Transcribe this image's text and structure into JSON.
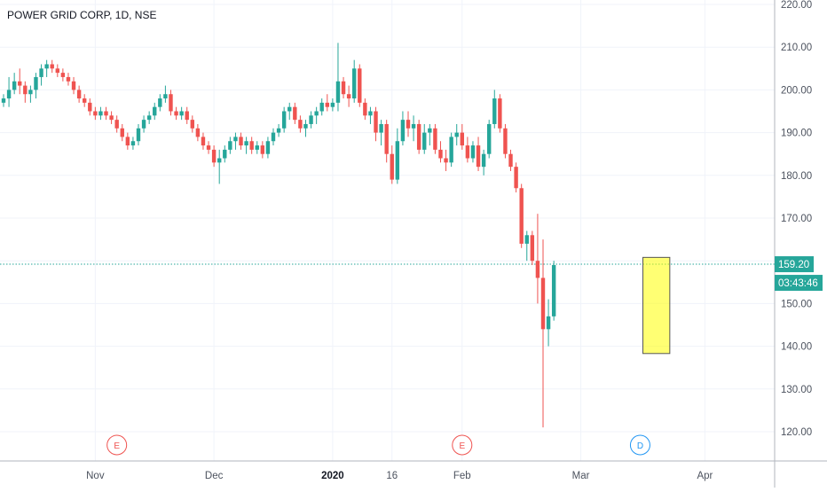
{
  "chart_data": {
    "type": "candlestick",
    "title": "POWER GRID CORP, 1D, NSE",
    "ylim": [
      115,
      222
    ],
    "y_ticks": [
      "220.00",
      "210.00",
      "200.00",
      "190.00",
      "180.00",
      "170.00",
      "160.00",
      "150.00",
      "140.00",
      "130.00",
      "120.00"
    ],
    "x_ticks": [
      {
        "label": "Nov",
        "bar": 17,
        "bold": false
      },
      {
        "label": "Dec",
        "bar": 39,
        "bold": false
      },
      {
        "label": "2020",
        "bar": 61,
        "bold": true
      },
      {
        "label": "16",
        "bar": 72,
        "bold": false
      },
      {
        "label": "Feb",
        "bar": 85,
        "bold": false
      },
      {
        "label": "Mar",
        "bar": 107,
        "bold": false
      },
      {
        "label": "Apr",
        "bar": 130,
        "bold": false
      }
    ],
    "last_price": {
      "value": 159.2,
      "label": "159.20",
      "countdown": "03:43:46"
    },
    "events": [
      {
        "label": "E",
        "bar": 21,
        "kind": "earnings"
      },
      {
        "label": "E",
        "bar": 85,
        "kind": "earnings"
      },
      {
        "label": "D",
        "bar": 118,
        "kind": "dividend"
      }
    ],
    "highlight": {
      "bar_from": 119,
      "bar_to": 123,
      "y_from": 138.3,
      "y_to": 160.8
    },
    "candles": [
      [
        197,
        199,
        196,
        198
      ],
      [
        198,
        203,
        196,
        200
      ],
      [
        200,
        204,
        199,
        202
      ],
      [
        202,
        205,
        199,
        201
      ],
      [
        201,
        202,
        197,
        199
      ],
      [
        199,
        201,
        197,
        200
      ],
      [
        200,
        204,
        198,
        203
      ],
      [
        203,
        206,
        201,
        205
      ],
      [
        205,
        207,
        203,
        206
      ],
      [
        206,
        207,
        204,
        205
      ],
      [
        205,
        206,
        203,
        204
      ],
      [
        204,
        205,
        202,
        203
      ],
      [
        203,
        204,
        201,
        202
      ],
      [
        202,
        203,
        199,
        200
      ],
      [
        200,
        201,
        197,
        198
      ],
      [
        198,
        199,
        196,
        197
      ],
      [
        197,
        198,
        194,
        195
      ],
      [
        195,
        196,
        193,
        194
      ],
      [
        194,
        196,
        193,
        195
      ],
      [
        195,
        196,
        193,
        194
      ],
      [
        194,
        195,
        192,
        193
      ],
      [
        193,
        194,
        190,
        191
      ],
      [
        191,
        192,
        188,
        189
      ],
      [
        189,
        190,
        186,
        187
      ],
      [
        187,
        189,
        186,
        188
      ],
      [
        188,
        192,
        187,
        191
      ],
      [
        191,
        194,
        190,
        193
      ],
      [
        193,
        195,
        192,
        194
      ],
      [
        194,
        197,
        193,
        196
      ],
      [
        196,
        199,
        195,
        198
      ],
      [
        198,
        201,
        197,
        199
      ],
      [
        199,
        200,
        194,
        195
      ],
      [
        195,
        196,
        193,
        194
      ],
      [
        194,
        196,
        193,
        195
      ],
      [
        195,
        196,
        192,
        193
      ],
      [
        193,
        194,
        190,
        191
      ],
      [
        191,
        192,
        188,
        189
      ],
      [
        189,
        190,
        186,
        187
      ],
      [
        187,
        188,
        185,
        186
      ],
      [
        186,
        187,
        182,
        183
      ],
      [
        183,
        186,
        178,
        184
      ],
      [
        184,
        187,
        183,
        186
      ],
      [
        186,
        189,
        185,
        188
      ],
      [
        188,
        190,
        186,
        189
      ],
      [
        189,
        190,
        186,
        187
      ],
      [
        187,
        189,
        185,
        188
      ],
      [
        188,
        189,
        185,
        186
      ],
      [
        186,
        188,
        185,
        187
      ],
      [
        187,
        188,
        184,
        185
      ],
      [
        185,
        189,
        184,
        188
      ],
      [
        188,
        191,
        187,
        190
      ],
      [
        190,
        192,
        189,
        191
      ],
      [
        191,
        196,
        190,
        195
      ],
      [
        195,
        197,
        193,
        196
      ],
      [
        196,
        197,
        192,
        193
      ],
      [
        193,
        194,
        190,
        191
      ],
      [
        191,
        193,
        189,
        192
      ],
      [
        192,
        195,
        191,
        194
      ],
      [
        194,
        196,
        192,
        195
      ],
      [
        195,
        198,
        194,
        197
      ],
      [
        197,
        199,
        195,
        196
      ],
      [
        196,
        198,
        195,
        197
      ],
      [
        197,
        211,
        195,
        202
      ],
      [
        202,
        203,
        198,
        199
      ],
      [
        199,
        201,
        196,
        198
      ],
      [
        198,
        207,
        197,
        205
      ],
      [
        205,
        206,
        196,
        197
      ],
      [
        197,
        198,
        193,
        194
      ],
      [
        194,
        196,
        192,
        195
      ],
      [
        195,
        196,
        188,
        190
      ],
      [
        190,
        193,
        187,
        192
      ],
      [
        192,
        193,
        183,
        185
      ],
      [
        185,
        187,
        178,
        179
      ],
      [
        179,
        191,
        178,
        188
      ],
      [
        188,
        195,
        187,
        193
      ],
      [
        193,
        195,
        189,
        191
      ],
      [
        191,
        194,
        188,
        192
      ],
      [
        192,
        193,
        185,
        186
      ],
      [
        186,
        192,
        185,
        190
      ],
      [
        190,
        192,
        187,
        191
      ],
      [
        191,
        192,
        185,
        186
      ],
      [
        186,
        188,
        183,
        184
      ],
      [
        184,
        186,
        181,
        183
      ],
      [
        183,
        190,
        182,
        189
      ],
      [
        189,
        192,
        187,
        190
      ],
      [
        190,
        192,
        186,
        187
      ],
      [
        187,
        189,
        183,
        184
      ],
      [
        184,
        188,
        183,
        187
      ],
      [
        187,
        189,
        181,
        182
      ],
      [
        182,
        186,
        180,
        185
      ],
      [
        185,
        193,
        184,
        192
      ],
      [
        192,
        200,
        191,
        198
      ],
      [
        198,
        199,
        190,
        191
      ],
      [
        191,
        192,
        184,
        185
      ],
      [
        185,
        186,
        181,
        182
      ],
      [
        182,
        183,
        176,
        177
      ],
      [
        177,
        178,
        163,
        164
      ],
      [
        164,
        167,
        160,
        166
      ],
      [
        166,
        167,
        159,
        160
      ],
      [
        160,
        171,
        150,
        156
      ],
      [
        156,
        165,
        121,
        144
      ],
      [
        144,
        151,
        140,
        147
      ],
      [
        147,
        160,
        146,
        159
      ]
    ]
  }
}
